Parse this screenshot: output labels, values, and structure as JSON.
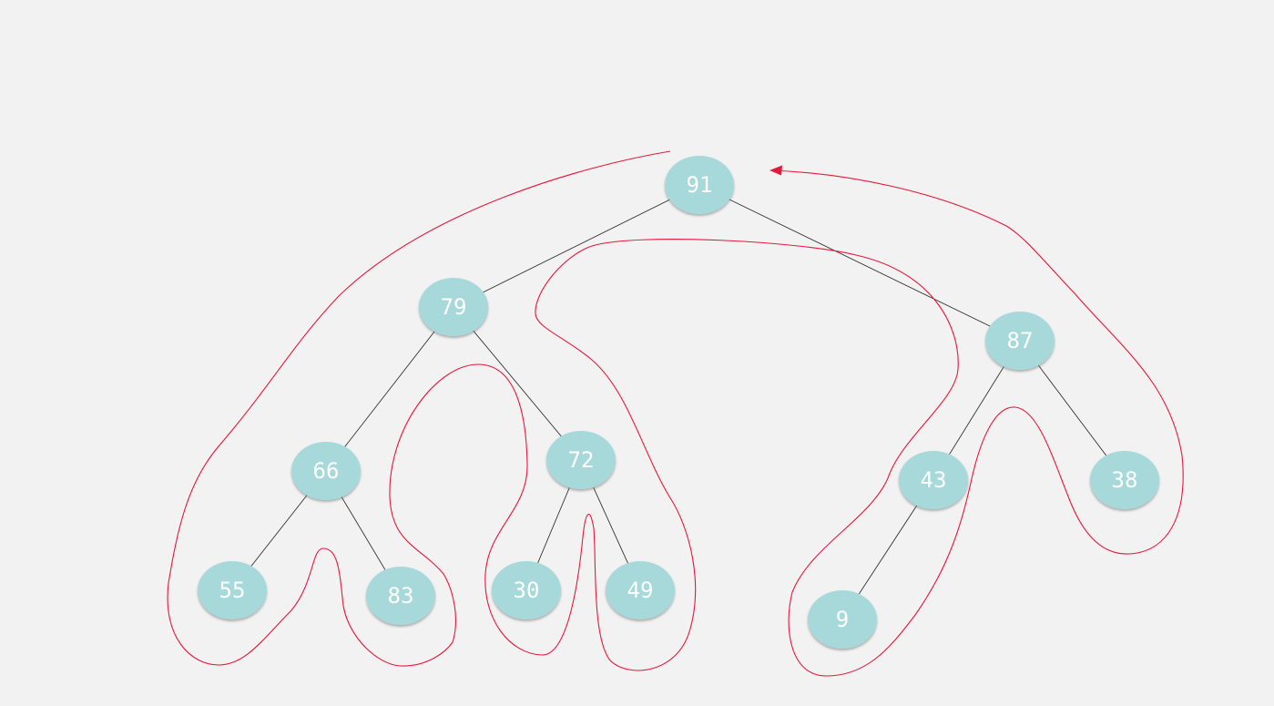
{
  "tree": {
    "nodes": [
      {
        "id": "n91",
        "value": "91"
      },
      {
        "id": "n79",
        "value": "79"
      },
      {
        "id": "n87",
        "value": "87"
      },
      {
        "id": "n66",
        "value": "66"
      },
      {
        "id": "n72",
        "value": "72"
      },
      {
        "id": "n43",
        "value": "43"
      },
      {
        "id": "n38",
        "value": "38"
      },
      {
        "id": "n55",
        "value": "55"
      },
      {
        "id": "n83",
        "value": "83"
      },
      {
        "id": "n30",
        "value": "30"
      },
      {
        "id": "n49",
        "value": "49"
      },
      {
        "id": "n9",
        "value": "9"
      }
    ],
    "edges": [
      [
        "n91",
        "n79"
      ],
      [
        "n91",
        "n87"
      ],
      [
        "n79",
        "n66"
      ],
      [
        "n79",
        "n72"
      ],
      [
        "n66",
        "n55"
      ],
      [
        "n66",
        "n83"
      ],
      [
        "n72",
        "n30"
      ],
      [
        "n72",
        "n49"
      ],
      [
        "n87",
        "n43"
      ],
      [
        "n87",
        "n38"
      ],
      [
        "n43",
        "n9"
      ]
    ]
  },
  "colors": {
    "background": "#f2f2f2",
    "node_fill": "#a8d9da",
    "node_text": "#ffffff",
    "edge": "#333333",
    "traversal_path": "#e8173c"
  }
}
